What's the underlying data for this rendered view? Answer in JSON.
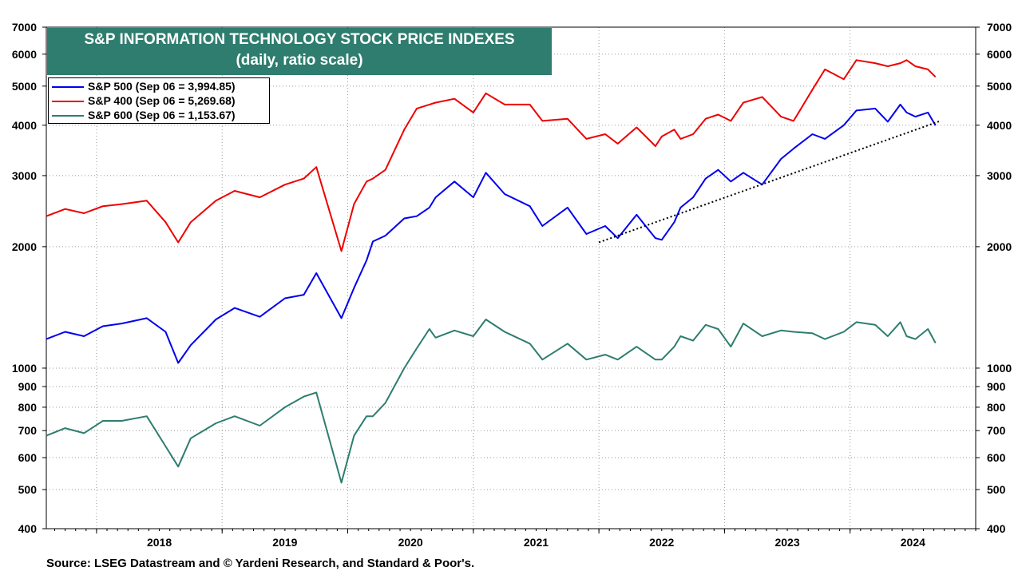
{
  "chart_data": {
    "type": "line",
    "title": "S&P INFORMATION TECHNOLOGY STOCK PRICE INDEXES",
    "subtitle": "(daily, ratio scale)",
    "yscale": "log",
    "ylim": [
      400,
      7000
    ],
    "xlim": [
      2017.6,
      2025.0
    ],
    "yticks": [
      400,
      500,
      600,
      700,
      800,
      900,
      1000,
      2000,
      3000,
      4000,
      5000,
      6000,
      7000
    ],
    "ytick_labels": [
      "400",
      "500",
      "600",
      "700",
      "800",
      "900",
      "1000",
      "2000",
      "3000",
      "4000",
      "5000",
      "6000",
      "7000"
    ],
    "year_boundaries": [
      2018,
      2019,
      2020,
      2021,
      2022,
      2023,
      2024
    ],
    "xtick_labels": [
      {
        "label": "2018",
        "at": 2018.5
      },
      {
        "label": "2019",
        "at": 2019.5
      },
      {
        "label": "2020",
        "at": 2020.5
      },
      {
        "label": "2021",
        "at": 2021.5
      },
      {
        "label": "2022",
        "at": 2022.5
      },
      {
        "label": "2023",
        "at": 2023.5
      },
      {
        "label": "2024",
        "at": 2024.5
      }
    ],
    "legend_position": "top-left",
    "series": [
      {
        "name": "S&P 500 (Sep 06 = 3,994.85)",
        "color": "#0000ee",
        "x": [
          2017.6,
          2017.75,
          2017.9,
          2018.05,
          2018.2,
          2018.4,
          2018.55,
          2018.65,
          2018.75,
          2018.95,
          2019.1,
          2019.3,
          2019.5,
          2019.65,
          2019.75,
          2019.95,
          2020.05,
          2020.15,
          2020.2,
          2020.3,
          2020.45,
          2020.55,
          2020.65,
          2020.7,
          2020.85,
          2021.0,
          2021.1,
          2021.25,
          2021.45,
          2021.55,
          2021.75,
          2021.9,
          2022.05,
          2022.15,
          2022.3,
          2022.45,
          2022.5,
          2022.6,
          2022.65,
          2022.75,
          2022.85,
          2022.95,
          2023.05,
          2023.15,
          2023.3,
          2023.45,
          2023.55,
          2023.7,
          2023.8,
          2023.95,
          2024.05,
          2024.2,
          2024.3,
          2024.4,
          2024.45,
          2024.52,
          2024.62,
          2024.68
        ],
        "values": [
          1180,
          1230,
          1200,
          1270,
          1290,
          1330,
          1230,
          1030,
          1140,
          1320,
          1410,
          1340,
          1490,
          1520,
          1720,
          1330,
          1580,
          1850,
          2060,
          2130,
          2350,
          2380,
          2500,
          2650,
          2900,
          2650,
          3050,
          2700,
          2520,
          2250,
          2500,
          2150,
          2250,
          2100,
          2400,
          2100,
          2080,
          2300,
          2500,
          2650,
          2950,
          3100,
          2900,
          3050,
          2850,
          3300,
          3500,
          3800,
          3700,
          4000,
          4350,
          4400,
          4080,
          4500,
          4300,
          4200,
          4300,
          3995
        ]
      },
      {
        "name": "S&P 400 (Sep 06 = 5,269.68)",
        "color": "#ee0000",
        "x": [
          2017.6,
          2017.75,
          2017.9,
          2018.05,
          2018.2,
          2018.4,
          2018.55,
          2018.65,
          2018.75,
          2018.95,
          2019.1,
          2019.3,
          2019.5,
          2019.65,
          2019.75,
          2019.95,
          2020.05,
          2020.15,
          2020.2,
          2020.3,
          2020.45,
          2020.55,
          2020.65,
          2020.7,
          2020.85,
          2021.0,
          2021.1,
          2021.25,
          2021.45,
          2021.55,
          2021.75,
          2021.9,
          2022.05,
          2022.15,
          2022.3,
          2022.45,
          2022.5,
          2022.6,
          2022.65,
          2022.75,
          2022.85,
          2022.95,
          2023.05,
          2023.15,
          2023.3,
          2023.45,
          2023.55,
          2023.7,
          2023.8,
          2023.95,
          2024.05,
          2024.2,
          2024.3,
          2024.4,
          2024.45,
          2024.52,
          2024.62,
          2024.68
        ],
        "values": [
          2380,
          2480,
          2420,
          2520,
          2550,
          2600,
          2300,
          2050,
          2300,
          2600,
          2750,
          2650,
          2850,
          2950,
          3150,
          1950,
          2550,
          2900,
          2950,
          3100,
          3900,
          4400,
          4500,
          4550,
          4650,
          4300,
          4800,
          4500,
          4500,
          4100,
          4150,
          3700,
          3800,
          3600,
          3950,
          3550,
          3750,
          3900,
          3700,
          3800,
          4150,
          4250,
          4100,
          4550,
          4700,
          4200,
          4100,
          4900,
          5500,
          5200,
          5800,
          5700,
          5600,
          5700,
          5800,
          5600,
          5500,
          5270
        ]
      },
      {
        "name": "S&P 600 (Sep 06 = 1,153.67)",
        "color": "#2e7d6f",
        "x": [
          2017.6,
          2017.75,
          2017.9,
          2018.05,
          2018.2,
          2018.4,
          2018.55,
          2018.65,
          2018.75,
          2018.95,
          2019.1,
          2019.3,
          2019.5,
          2019.65,
          2019.75,
          2019.95,
          2020.05,
          2020.15,
          2020.2,
          2020.3,
          2020.45,
          2020.55,
          2020.65,
          2020.7,
          2020.85,
          2021.0,
          2021.1,
          2021.25,
          2021.45,
          2021.55,
          2021.75,
          2021.9,
          2022.05,
          2022.15,
          2022.3,
          2022.45,
          2022.5,
          2022.6,
          2022.65,
          2022.75,
          2022.85,
          2022.95,
          2023.05,
          2023.15,
          2023.3,
          2023.45,
          2023.55,
          2023.7,
          2023.8,
          2023.95,
          2024.05,
          2024.2,
          2024.3,
          2024.4,
          2024.45,
          2024.52,
          2024.62,
          2024.68
        ],
        "values": [
          680,
          710,
          690,
          740,
          740,
          760,
          640,
          570,
          670,
          730,
          760,
          720,
          800,
          850,
          870,
          520,
          680,
          760,
          760,
          820,
          1000,
          1120,
          1250,
          1190,
          1240,
          1200,
          1320,
          1230,
          1150,
          1050,
          1150,
          1050,
          1080,
          1050,
          1130,
          1050,
          1050,
          1130,
          1200,
          1170,
          1280,
          1250,
          1130,
          1290,
          1200,
          1240,
          1230,
          1220,
          1180,
          1230,
          1300,
          1280,
          1200,
          1300,
          1200,
          1180,
          1250,
          1154
        ]
      }
    ],
    "trendline": {
      "style": "dotted",
      "color": "#000000",
      "x": [
        2022.0,
        2024.72
      ],
      "values": [
        2050,
        4100
      ]
    }
  },
  "title_line1": "S&P INFORMATION TECHNOLOGY STOCK PRICE INDEXES",
  "title_line2": "(daily, ratio scale)",
  "legend": [
    {
      "label": "S&P 500 (Sep 06 = 3,994.85)",
      "color": "#0000ee"
    },
    {
      "label": "S&P 400 (Sep 06 = 5,269.68)",
      "color": "#ee0000"
    },
    {
      "label": "S&P 600 (Sep 06 = 1,153.67)",
      "color": "#2e7d6f"
    }
  ],
  "title_background": "#2e7d6f",
  "source": "Source: LSEG Datastream and © Yardeni Research, and Standard & Poor's."
}
